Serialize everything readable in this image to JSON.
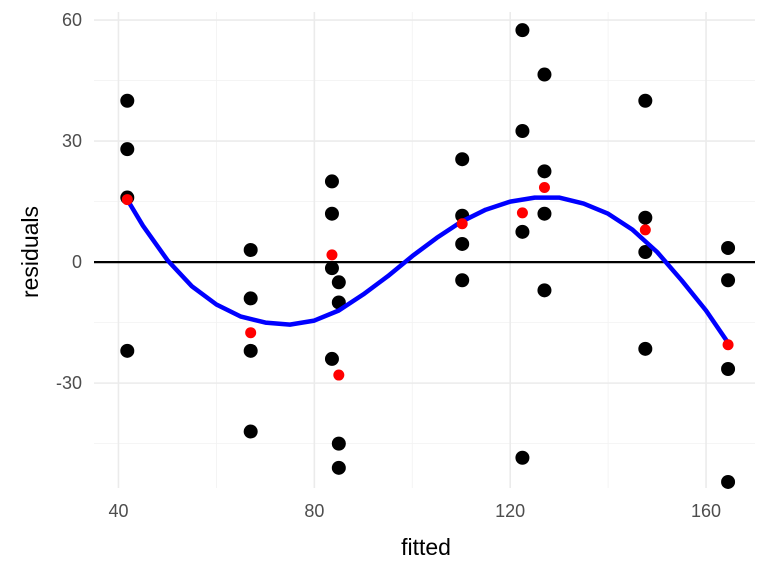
{
  "chart_data": {
    "type": "scatter",
    "xlabel": "fitted",
    "ylabel": "residuals",
    "xlim": [
      35,
      170
    ],
    "ylim": [
      -56,
      62
    ],
    "x_ticks": [
      40,
      80,
      120,
      160
    ],
    "x_minor_ticks": [
      60,
      100,
      140
    ],
    "y_ticks": [
      -30,
      0,
      30,
      60
    ],
    "y_minor_ticks": [
      -45,
      -15,
      15,
      45
    ],
    "grid": true,
    "legend": "none",
    "reference_line": {
      "y": 0,
      "color": "#000000"
    },
    "colors": {
      "observed": "#000000",
      "mean": "#ff0000",
      "smooth": "#0000ff"
    },
    "series": [
      {
        "kind": "observed",
        "points": [
          [
            41.8,
            40
          ],
          [
            41.8,
            28
          ],
          [
            41.8,
            16
          ],
          [
            41.8,
            -22
          ],
          [
            67,
            3
          ],
          [
            67,
            -9
          ],
          [
            67,
            -22
          ],
          [
            67,
            -42
          ],
          [
            83.6,
            20
          ],
          [
            83.6,
            12
          ],
          [
            83.6,
            -1.5
          ],
          [
            83.6,
            -24
          ],
          [
            85,
            -5
          ],
          [
            85,
            -10
          ],
          [
            85,
            -45
          ],
          [
            85,
            -51
          ],
          [
            110.2,
            25.5
          ],
          [
            110.2,
            11.5
          ],
          [
            110.2,
            4.5
          ],
          [
            110.2,
            -4.5
          ],
          [
            122.5,
            57.5
          ],
          [
            122.5,
            32.5
          ],
          [
            122.5,
            7.5
          ],
          [
            122.5,
            -48.5
          ],
          [
            127,
            46.5
          ],
          [
            127,
            22.5
          ],
          [
            127,
            12
          ],
          [
            127,
            -7
          ],
          [
            147.6,
            40
          ],
          [
            147.6,
            11
          ],
          [
            147.6,
            2.5
          ],
          [
            147.6,
            -21.5
          ],
          [
            164.5,
            3.5
          ],
          [
            164.5,
            -4.5
          ],
          [
            164.5,
            -26.5
          ],
          [
            164.5,
            -54.5
          ]
        ]
      },
      {
        "kind": "mean",
        "points": [
          [
            41.8,
            15.5
          ],
          [
            67,
            -17.5
          ],
          [
            83.6,
            1.8
          ],
          [
            85,
            -28
          ],
          [
            110.2,
            9.5
          ],
          [
            122.5,
            12.2
          ],
          [
            127,
            18.5
          ],
          [
            147.6,
            8
          ],
          [
            164.5,
            -20.5
          ]
        ]
      },
      {
        "kind": "smooth",
        "points": [
          [
            41.8,
            15.5
          ],
          [
            45,
            9
          ],
          [
            50,
            0.5
          ],
          [
            55,
            -6
          ],
          [
            60,
            -10.5
          ],
          [
            65,
            -13.5
          ],
          [
            70,
            -15
          ],
          [
            75,
            -15.5
          ],
          [
            80,
            -14.5
          ],
          [
            85,
            -12
          ],
          [
            90,
            -8
          ],
          [
            95,
            -3.5
          ],
          [
            100,
            1.5
          ],
          [
            105,
            6
          ],
          [
            110,
            10
          ],
          [
            115,
            13
          ],
          [
            120,
            15
          ],
          [
            125,
            16
          ],
          [
            130,
            16
          ],
          [
            135,
            14.5
          ],
          [
            140,
            12
          ],
          [
            145,
            8
          ],
          [
            150,
            2.5
          ],
          [
            155,
            -4.5
          ],
          [
            160,
            -12
          ],
          [
            164.5,
            -20
          ]
        ]
      }
    ]
  }
}
